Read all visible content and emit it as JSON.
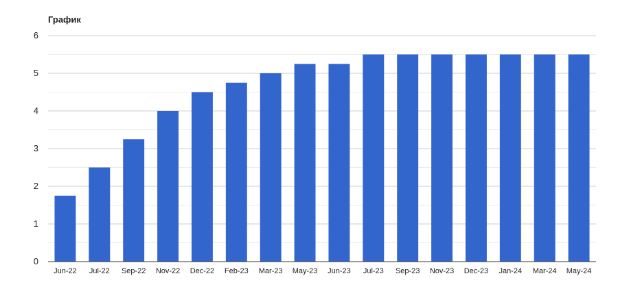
{
  "chart_data": {
    "type": "bar",
    "title": "График",
    "categories": [
      "Jun-22",
      "Jul-22",
      "Sep-22",
      "Nov-22",
      "Dec-22",
      "Feb-23",
      "Mar-23",
      "May-23",
      "Jun-23",
      "Jul-23",
      "Sep-23",
      "Nov-23",
      "Dec-23",
      "Jan-24",
      "Mar-24",
      "May-24"
    ],
    "values": [
      1.75,
      2.5,
      3.25,
      4,
      4.5,
      4.75,
      5,
      5.25,
      5.25,
      5.5,
      5.5,
      5.5,
      5.5,
      5.5,
      5.5,
      5.5
    ],
    "ylim": [
      0,
      6
    ],
    "yticks": [
      0,
      1,
      2,
      3,
      4,
      5,
      6
    ],
    "grid": true,
    "legend": "none",
    "bar_color": "#3366cc",
    "grid_color": "#cccccc",
    "axis_color": "#333333",
    "text_color": "#222222"
  }
}
